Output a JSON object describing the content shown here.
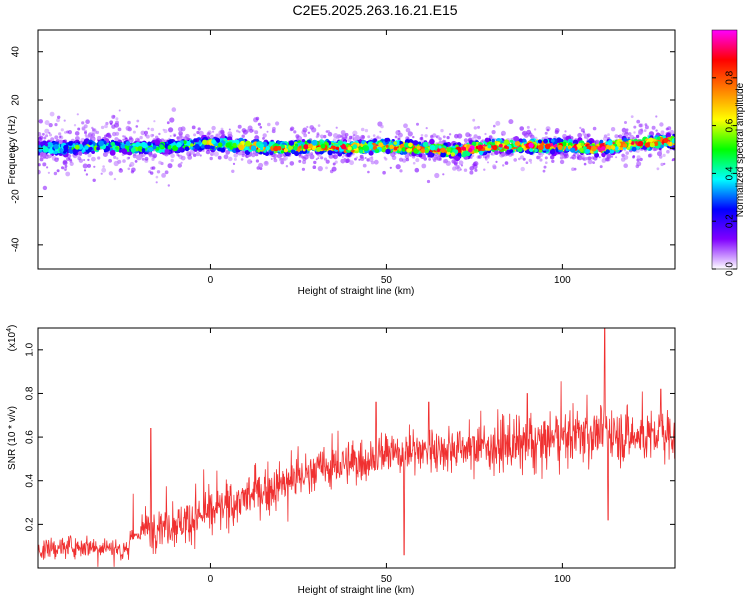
{
  "title": "C2E5.2025.263.16.21.E15",
  "colors": {
    "snr_line": "#f03030",
    "axis": "#000000"
  },
  "chart_data": [
    {
      "type": "heatmap",
      "xlabel": "Height of straight line (km)",
      "ylabel": "Frequency (Hz)",
      "xlim": [
        -49,
        132
      ],
      "ylim": [
        -50,
        49
      ],
      "xticks": [
        0,
        50,
        100
      ],
      "yticks": [
        -40,
        -20,
        0,
        20,
        40
      ],
      "colorbar": {
        "label": "Normalized spectral amplitude",
        "ticks": [
          "0.0",
          "0.2",
          "0.4",
          "0.6",
          "0.8"
        ],
        "range": [
          0,
          1
        ],
        "colormap": [
          "#ffffff",
          "#8000ff",
          "#0000ff",
          "#00ffff",
          "#00ff00",
          "#ffff00",
          "#ff8000",
          "#ff0000",
          "#ff00ff"
        ]
      },
      "ridge": {
        "x": [
          -49,
          -40,
          -30,
          -20,
          -10,
          0,
          10,
          20,
          30,
          40,
          50,
          60,
          70,
          80,
          90,
          100,
          110,
          120,
          132
        ],
        "y": [
          0,
          0,
          1,
          0,
          1,
          2,
          1,
          0,
          1,
          0,
          1,
          0,
          -1,
          1,
          1,
          1,
          0,
          2,
          3
        ],
        "peak": [
          0.45,
          0.5,
          0.55,
          0.5,
          0.55,
          0.65,
          0.75,
          0.8,
          0.8,
          0.85,
          0.85,
          0.85,
          0.9,
          0.9,
          0.9,
          0.85,
          0.95,
          0.9,
          0.8
        ]
      }
    },
    {
      "type": "line",
      "xlabel": "Height of straight line (km)",
      "ylabel": "SNR (10 * v/v)",
      "yscale_note": "(x10",
      "yscale_exp": "4",
      "yscale_close": ")",
      "xlim": [
        -49,
        132
      ],
      "ylim": [
        0,
        1.1
      ],
      "xticks": [
        0,
        50,
        100
      ],
      "yticks": [
        "0.2",
        "0.4",
        "0.6",
        "0.8",
        "1.0"
      ],
      "trend": {
        "x": [
          -49,
          -40,
          -30,
          -25,
          -20,
          -15,
          -10,
          0,
          10,
          20,
          30,
          40,
          50,
          60,
          70,
          80,
          90,
          100,
          110,
          120,
          132
        ],
        "y": [
          0.08,
          0.1,
          0.1,
          0.08,
          0.17,
          0.2,
          0.2,
          0.25,
          0.32,
          0.38,
          0.45,
          0.48,
          0.52,
          0.54,
          0.55,
          0.56,
          0.56,
          0.6,
          0.62,
          0.6,
          0.62
        ]
      },
      "spikes": [
        {
          "x": -17,
          "y": 0.64
        },
        {
          "x": 47,
          "y": 0.76
        },
        {
          "x": 55,
          "y": 0.06
        },
        {
          "x": 62,
          "y": 0.76
        },
        {
          "x": 90,
          "y": 0.8
        },
        {
          "x": 112,
          "y": 1.1
        },
        {
          "x": 113,
          "y": 0.22
        },
        {
          "x": 128,
          "y": 0.82
        }
      ]
    }
  ]
}
